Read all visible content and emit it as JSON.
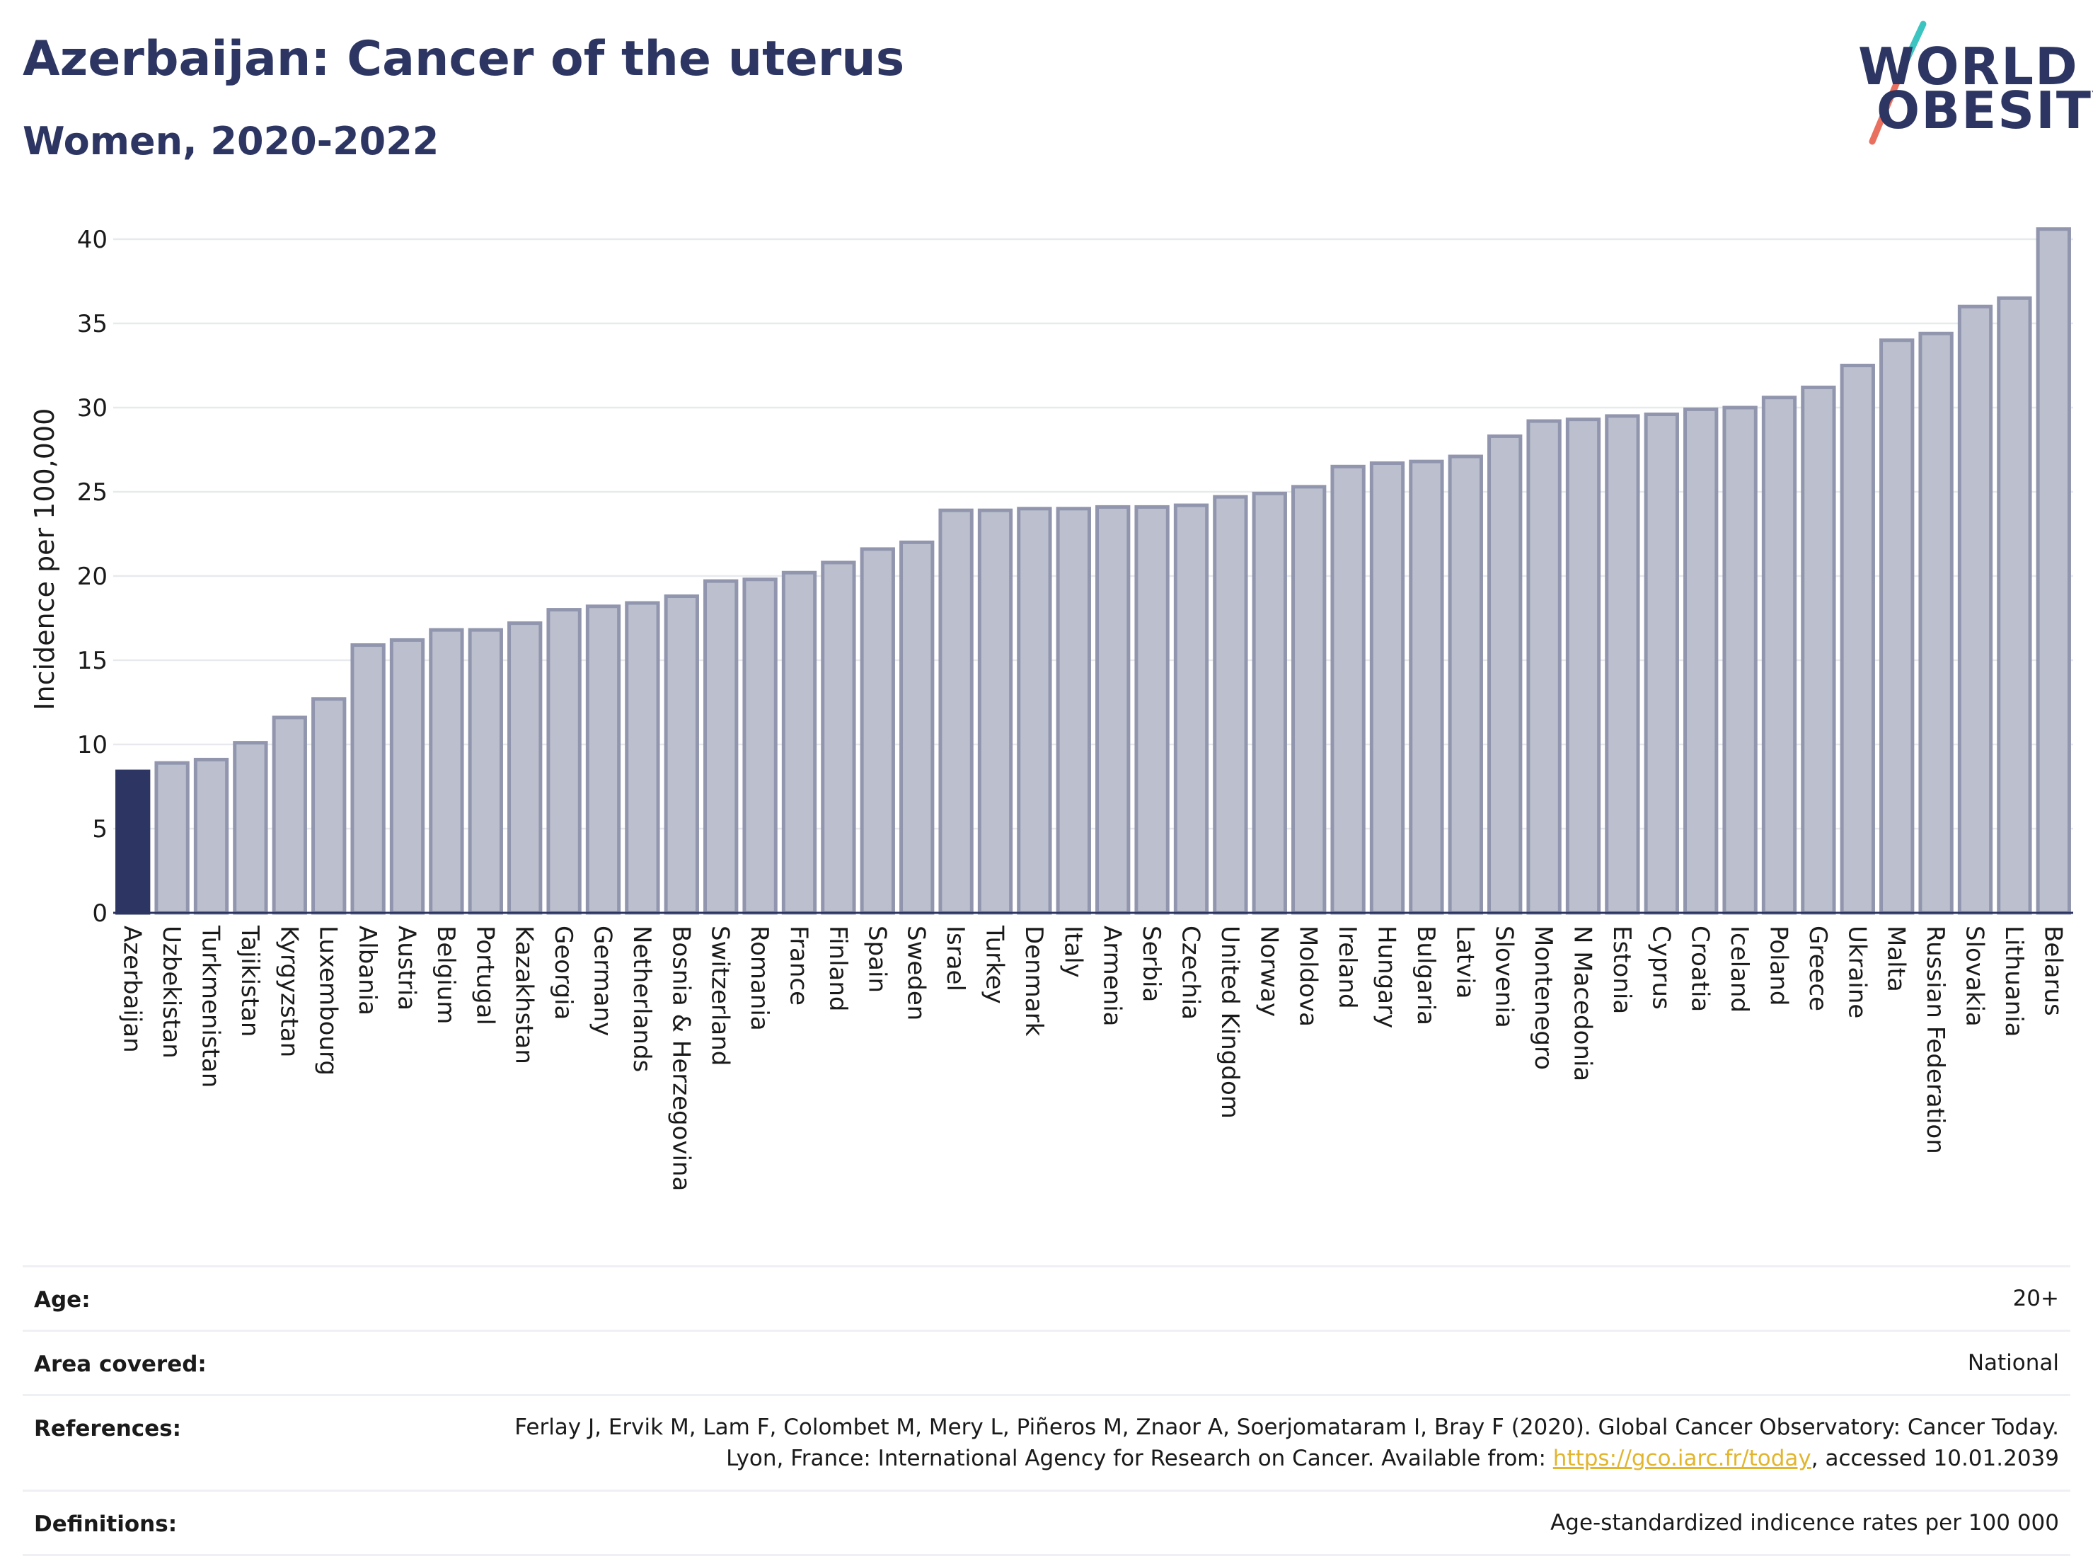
{
  "header": {
    "title": "Azerbaijan: Cancer of the uterus",
    "subtitle": "Women, 2020-2022"
  },
  "logo": {
    "line1": "WORLD",
    "line2": "OBESITY",
    "colors": {
      "text": "#2d3663",
      "slash_top": "#3cc4c0",
      "slash_bottom": "#e9705f"
    }
  },
  "chart_data": {
    "type": "bar",
    "ylabel": "Incidence per 100,000",
    "ylim": [
      0,
      42
    ],
    "yticks": [
      0,
      5,
      10,
      15,
      20,
      25,
      30,
      35,
      40
    ],
    "grid": true,
    "highlight": "Azerbaijan",
    "colors": {
      "highlight": "#2d3663",
      "bar_fill": "#bcc0ce",
      "bar_stroke": "#9196ae",
      "grid": "#e8e9ed",
      "axis": "#2d3663"
    },
    "categories": [
      "Azerbaijan",
      "Uzbekistan",
      "Turkmenistan",
      "Tajikistan",
      "Kyrgyzstan",
      "Luxembourg",
      "Albania",
      "Austria",
      "Belgium",
      "Portugal",
      "Kazakhstan",
      "Georgia",
      "Germany",
      "Netherlands",
      "Bosnia & Herzegovina",
      "Switzerland",
      "Romania",
      "France",
      "Finland",
      "Spain",
      "Sweden",
      "Israel",
      "Turkey",
      "Denmark",
      "Italy",
      "Armenia",
      "Serbia",
      "Czechia",
      "United Kingdom",
      "Norway",
      "Moldova",
      "Ireland",
      "Hungary",
      "Bulgaria",
      "Latvia",
      "Slovenia",
      "Montenegro",
      "N Macedonia",
      "Estonia",
      "Cyprus",
      "Croatia",
      "Iceland",
      "Poland",
      "Greece",
      "Ukraine",
      "Malta",
      "Russian Federation",
      "Slovakia",
      "Lithuania",
      "Belarus"
    ],
    "values": [
      8.4,
      8.9,
      9.1,
      10.1,
      11.6,
      12.7,
      15.9,
      16.2,
      16.8,
      16.8,
      17.2,
      18.0,
      18.2,
      18.4,
      18.8,
      19.7,
      19.8,
      20.2,
      20.8,
      21.6,
      22.0,
      23.9,
      23.9,
      24.0,
      24.0,
      24.1,
      24.1,
      24.2,
      24.7,
      24.9,
      25.3,
      26.5,
      26.7,
      26.8,
      27.1,
      28.3,
      29.2,
      29.3,
      29.5,
      29.6,
      29.9,
      30.0,
      30.6,
      31.2,
      32.5,
      34.0,
      34.4,
      36.0,
      36.5,
      40.6
    ]
  },
  "meta": {
    "age_label": "Age:",
    "age_value": "20+",
    "area_label": "Area covered:",
    "area_value": "National",
    "references_label": "References:",
    "references_text_before": "Ferlay J, Ervik M, Lam F, Colombet M, Mery L, Piñeros M, Znaor A, Soerjomataram I, Bray F (2020). Global Cancer Observatory: Cancer Today. Lyon, France: International Agency for Research on Cancer. Available from: ",
    "references_link": "https://gco.iarc.fr/today",
    "references_text_after": ", accessed 10.01.2039",
    "definitions_label": "Definitions:",
    "definitions_value": "Age-standardized indicence rates per 100 000",
    "link_color": "#e2b52f"
  }
}
